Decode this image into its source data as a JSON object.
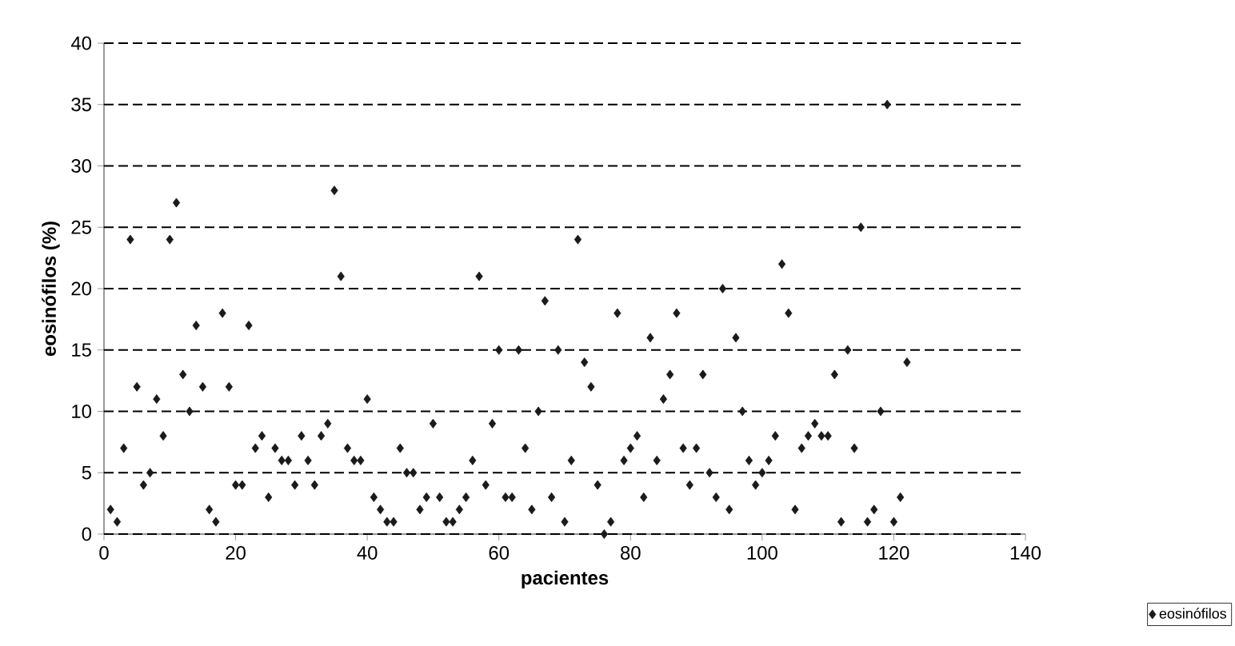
{
  "chart_data": {
    "type": "scatter",
    "xlabel": "pacientes",
    "ylabel": "eosinófilos (%)",
    "x": [
      1,
      2,
      3,
      4,
      5,
      6,
      7,
      8,
      9,
      10,
      11,
      12,
      13,
      14,
      15,
      16,
      17,
      18,
      19,
      20,
      21,
      22,
      23,
      24,
      25,
      26,
      27,
      28,
      29,
      30,
      31,
      32,
      33,
      34,
      35,
      36,
      37,
      38,
      39,
      40,
      41,
      42,
      43,
      44,
      45,
      46,
      47,
      48,
      49,
      50,
      51,
      52,
      53,
      54,
      55,
      56,
      57,
      58,
      59,
      60,
      61,
      62,
      63,
      64,
      65,
      66,
      67,
      68,
      69,
      70,
      71,
      72,
      73,
      74,
      75,
      76,
      77,
      78,
      79,
      80,
      81,
      82,
      83,
      84,
      85,
      86,
      87,
      88,
      89,
      90,
      91,
      92,
      93,
      94,
      95,
      96,
      97,
      98,
      99,
      100,
      101,
      102,
      103,
      104,
      105,
      106,
      107,
      108,
      109,
      110,
      111,
      112,
      113,
      114,
      115,
      116,
      117,
      118,
      119,
      120,
      121,
      122
    ],
    "series": [
      {
        "name": "eosinófilos",
        "color": "#1a1a1a",
        "values": [
          2,
          1,
          7,
          24,
          12,
          4,
          5,
          11,
          8,
          24,
          27,
          13,
          10,
          17,
          12,
          2,
          1,
          18,
          12,
          4,
          4,
          17,
          7,
          8,
          3,
          7,
          6,
          6,
          4,
          8,
          6,
          4,
          8,
          9,
          28,
          21,
          7,
          6,
          6,
          11,
          3,
          2,
          1,
          1,
          7,
          5,
          5,
          2,
          3,
          9,
          3,
          1,
          1,
          2,
          3,
          6,
          21,
          4,
          9,
          15,
          3,
          3,
          15,
          7,
          2,
          10,
          19,
          3,
          15,
          1,
          6,
          24,
          14,
          12,
          4,
          0,
          1,
          18,
          6,
          7,
          8,
          3,
          16,
          6,
          11,
          13,
          18,
          7,
          4,
          7,
          13,
          5,
          3,
          20,
          2,
          16,
          10,
          6,
          4,
          5,
          6,
          8,
          22,
          18,
          2,
          7,
          8,
          9,
          8,
          8,
          13,
          1,
          15,
          7,
          25,
          1,
          2,
          10,
          35,
          1,
          3,
          14
        ]
      }
    ],
    "xlim": [
      0,
      140
    ],
    "xticks": [
      0,
      20,
      40,
      60,
      80,
      100,
      120,
      140
    ],
    "ylim": [
      0,
      40
    ],
    "yticks": [
      0,
      5,
      10,
      15,
      20,
      25,
      30,
      35,
      40
    ],
    "grid": "y",
    "legend": "bottom right",
    "marker": "diamond"
  }
}
